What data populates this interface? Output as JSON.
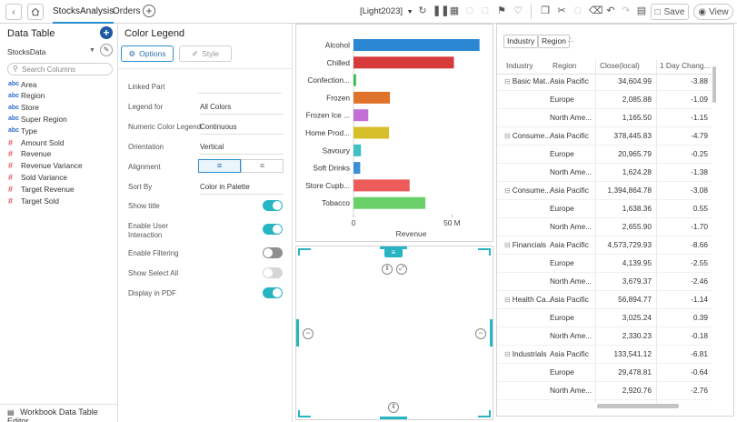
{
  "topbar": {
    "tabs": [
      "StocksAnalysis",
      "Orders"
    ],
    "active_tab": "StocksAnalysis",
    "theme_select": "[Light2023]",
    "save_label": "Save",
    "view_label": "View"
  },
  "data_panel": {
    "title": "Data Table",
    "source": "StocksData",
    "search_placeholder": "Search Columns",
    "fields": [
      {
        "name": "Area",
        "type": "abc"
      },
      {
        "name": "Region",
        "type": "abc"
      },
      {
        "name": "Store",
        "type": "abc"
      },
      {
        "name": "Super Region",
        "type": "abc"
      },
      {
        "name": "Type",
        "type": "abc"
      },
      {
        "name": "Amount Sold",
        "type": "#"
      },
      {
        "name": "Revenue",
        "type": "#"
      },
      {
        "name": "Revenue Variance",
        "type": "#"
      },
      {
        "name": "Sold Variance",
        "type": "#"
      },
      {
        "name": "Target Revenue",
        "type": "#"
      },
      {
        "name": "Target Sold",
        "type": "#"
      }
    ],
    "footer_label": "Workbook Data Table Editor"
  },
  "legend_panel": {
    "title": "Color Legend",
    "tab_options": "Options",
    "tab_style": "Style",
    "linked_part_label": "Linked Part",
    "linked_part_value": "",
    "legend_for_label": "Legend for",
    "legend_for_value": "All Colors",
    "numeric_color_legend_label": "Numeric Color Legend",
    "numeric_color_legend_value": "Continuous",
    "orientation_label": "Orientation",
    "orientation_value": "Vertical",
    "alignment_label": "Alignment",
    "sort_by_label": "Sort By",
    "sort_by_value": "Color in Palette",
    "show_title_label": "Show title",
    "show_title": true,
    "enable_user_interaction_label": "Enable User Interaction",
    "enable_user_interaction": true,
    "enable_filtering_label": "Enable Filtering",
    "enable_filtering": false,
    "show_select_all_label": "Show Select All",
    "show_select_all": false,
    "display_in_pdf_label": "Display in PDF",
    "display_in_pdf": true
  },
  "chart_data": {
    "type": "bar",
    "orientation": "horizontal",
    "categories": [
      "Alcohol",
      "Chilled",
      "Confection...",
      "Frozen",
      "Frozen Ice ...",
      "Home Prod...",
      "Savoury",
      "Soft Drinks",
      "Store Cupb...",
      "Tobacco"
    ],
    "values": [
      64,
      51,
      1.3,
      18.5,
      7.5,
      18,
      3.8,
      3.4,
      28.5,
      36.5
    ],
    "colors": [
      "#2b87d1",
      "#d63a3a",
      "#3dbd4e",
      "#e0732c",
      "#c46fd6",
      "#d6bf2a",
      "#3ec0c4",
      "#3a8fd6",
      "#ee5b5b",
      "#6ad16a"
    ],
    "xlabel": "Revenue",
    "xticks": [
      "0",
      "50 M"
    ],
    "xlim": [
      0,
      66
    ]
  },
  "grid": {
    "chips": [
      "Industry",
      "Region"
    ],
    "headers": [
      "Industry",
      "Region",
      "Close(local)",
      "1 Day Chang..."
    ],
    "groups": [
      {
        "industry": "Basic Mat...",
        "rows": [
          {
            "region": "Asia Pacific",
            "close": "34,604.99",
            "change": "-3.88"
          },
          {
            "region": "Europe",
            "close": "2,085.88",
            "change": "-1.09"
          },
          {
            "region": "North Ame...",
            "close": "1,165.50",
            "change": "-1.15"
          }
        ]
      },
      {
        "industry": "Consume...",
        "rows": [
          {
            "region": "Asia Pacific",
            "close": "378,445.83",
            "change": "-4.79"
          },
          {
            "region": "Europe",
            "close": "20,965.79",
            "change": "-0.25"
          },
          {
            "region": "North Ame...",
            "close": "1,624.28",
            "change": "-1.38"
          }
        ]
      },
      {
        "industry": "Consume...",
        "rows": [
          {
            "region": "Asia Pacific",
            "close": "1,394,864.78",
            "change": "-3.08"
          },
          {
            "region": "Europe",
            "close": "1,638.36",
            "change": "0.55"
          },
          {
            "region": "North Ame...",
            "close": "2,655.90",
            "change": "-1.70"
          }
        ]
      },
      {
        "industry": "Financials",
        "rows": [
          {
            "region": "Asia Pacific",
            "close": "4,573,729.93",
            "change": "-8.66"
          },
          {
            "region": "Europe",
            "close": "4,139.95",
            "change": "-2.55"
          },
          {
            "region": "North Ame...",
            "close": "3,679.37",
            "change": "-2.46"
          }
        ]
      },
      {
        "industry": "Health Ca...",
        "rows": [
          {
            "region": "Asia Pacific",
            "close": "56,894.77",
            "change": "-1.14"
          },
          {
            "region": "Europe",
            "close": "3,025.24",
            "change": "0.39"
          },
          {
            "region": "North Ame...",
            "close": "2,330.23",
            "change": "-0.18"
          }
        ]
      },
      {
        "industry": "Industrials",
        "rows": [
          {
            "region": "Asia Pacific",
            "close": "133,541.12",
            "change": "-6.81"
          },
          {
            "region": "Europe",
            "close": "29,478.81",
            "change": "-0.64"
          },
          {
            "region": "North Ame...",
            "close": "2,920.76",
            "change": "-2.76"
          }
        ]
      }
    ]
  }
}
